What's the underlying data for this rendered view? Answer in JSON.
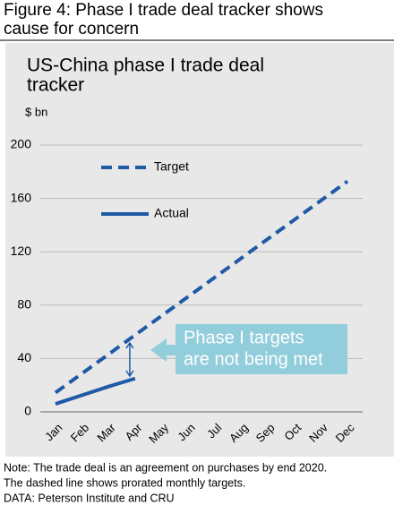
{
  "figure_title": [
    "Figure 4: Phase I trade deal tracker shows",
    "cause for concern"
  ],
  "chart_data": {
    "type": "line",
    "title": [
      "US-China phase I trade deal",
      "tracker"
    ],
    "y_label": "$ bn",
    "categories": [
      "Jan",
      "Feb",
      "Mar",
      "Apr",
      "May",
      "Jun",
      "Jul",
      "Aug",
      "Sep",
      "Oct",
      "Nov",
      "Dec"
    ],
    "series": [
      {
        "name": "Target",
        "color": "#1f5aa6",
        "linestyle": "dashed",
        "values": [
          14.4,
          28.8,
          43.2,
          57.6,
          72,
          86.4,
          100.8,
          115.2,
          129.6,
          144,
          158.4,
          172.8
        ]
      },
      {
        "name": "Actual",
        "color": "#1f5aa6",
        "linestyle": "solid",
        "values": [
          6,
          12.5,
          19,
          25,
          null,
          null,
          null,
          null,
          null,
          null,
          null,
          null
        ]
      }
    ],
    "ylim": [
      0,
      200
    ],
    "yticks": [
      0,
      40,
      80,
      120,
      160,
      200
    ],
    "grid": true,
    "legend": "upper left",
    "annotation": [
      "Phase I targets",
      "are not being met"
    ],
    "annotation_color": "#92cddc"
  },
  "notes": [
    "Note: The trade deal is an agreement on purchases by end 2020.",
    "The dashed line shows prorated monthly targets.",
    "DATA: Peterson Institute and CRU"
  ]
}
